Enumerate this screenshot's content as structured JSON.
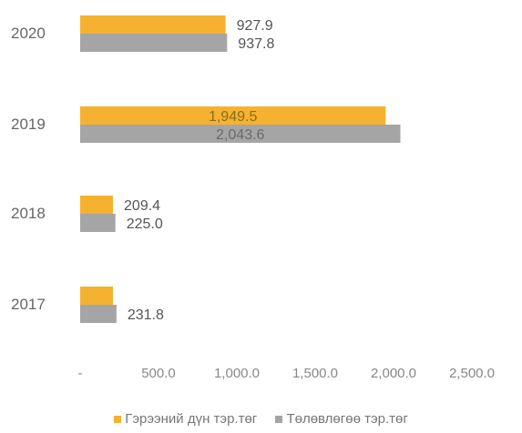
{
  "chart_data": {
    "type": "bar",
    "orientation": "horizontal",
    "categories": [
      "2020",
      "2019",
      "2018",
      "2017"
    ],
    "series": [
      {
        "name": "Гэрээний дүн тэр.төг",
        "color": "#F5B230",
        "values": [
          927.9,
          1949.5,
          209.4,
          209.4
        ]
      },
      {
        "name": "Төлөвлөгөө тэр.төг",
        "color": "#A5A5A5",
        "values": [
          937.8,
          2043.6,
          225.0,
          231.8
        ]
      }
    ],
    "data_labels": [
      [
        "927.9",
        "1,949.5",
        "209.4",
        ""
      ],
      [
        "937.8",
        "2,043.6",
        "225.0",
        "231.8"
      ]
    ],
    "x_ticks": [
      0,
      500,
      1000,
      1500,
      2000,
      2500
    ],
    "x_tick_labels": [
      "-",
      "500.0",
      "1,000.0",
      "1,500.0",
      "2,000.0",
      "2,500.0"
    ],
    "xlim": [
      0,
      2500
    ],
    "grid": false,
    "legend_position": "bottom"
  }
}
